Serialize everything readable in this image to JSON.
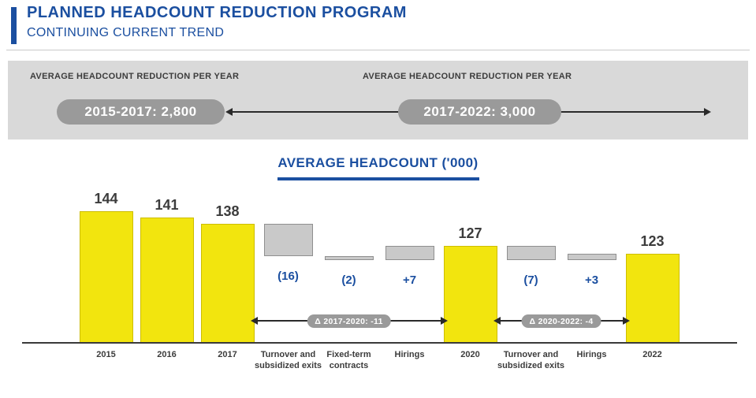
{
  "header": {
    "title": "PLANNED HEADCOUNT REDUCTION PROGRAM",
    "subtitle": "CONTINUING CURRENT TREND"
  },
  "summary_band": {
    "left_label": "AVERAGE HEADCOUNT REDUCTION PER YEAR",
    "right_label": "AVERAGE HEADCOUNT REDUCTION PER YEAR",
    "left_pill": "2015-2017: 2,800",
    "right_pill": "2017-2022: 3,000"
  },
  "chart_data": {
    "type": "bar",
    "subtype": "waterfall",
    "title": "AVERAGE HEADCOUNT ('000)",
    "axis_truncated": true,
    "ylim": [
      79,
      159
    ],
    "grid": false,
    "legend": false,
    "colors": {
      "total_bar": "#f2e50e",
      "delta_bar": "#c9c9c9",
      "accent_blue": "#1b4fa0",
      "pill_gray": "#9a9a9a",
      "band_gray": "#d9d9d9"
    },
    "columns": [
      {
        "label": "2015",
        "kind": "total",
        "value": 144,
        "display": "144"
      },
      {
        "label": "2016",
        "kind": "total",
        "value": 141,
        "display": "141"
      },
      {
        "label": "2017",
        "kind": "total",
        "value": 138,
        "display": "138"
      },
      {
        "label": "Turnover and subsidized exits",
        "kind": "delta",
        "from": 138,
        "to": 122,
        "change": -16,
        "display": "(16)"
      },
      {
        "label": "Fixed-term contracts",
        "kind": "delta",
        "from": 122,
        "to": 120,
        "change": -2,
        "display": "(2)"
      },
      {
        "label": "Hirings",
        "kind": "delta",
        "from": 120,
        "to": 127,
        "change": 7,
        "display": "+7"
      },
      {
        "label": "2020",
        "kind": "total",
        "value": 127,
        "display": "127"
      },
      {
        "label": "Turnover and subsidized exits",
        "kind": "delta",
        "from": 127,
        "to": 120,
        "change": -7,
        "display": "(7)"
      },
      {
        "label": "Hirings",
        "kind": "delta",
        "from": 120,
        "to": 123,
        "change": 3,
        "display": "+3"
      },
      {
        "label": "2022",
        "kind": "total",
        "value": 123,
        "display": "123"
      }
    ],
    "annotations": [
      {
        "label": "Δ 2017-2020: -11",
        "from_index": 2,
        "to_index": 6,
        "change": -11
      },
      {
        "label": "Δ 2020-2022: -4",
        "from_index": 6,
        "to_index": 9,
        "change": -4
      }
    ]
  }
}
